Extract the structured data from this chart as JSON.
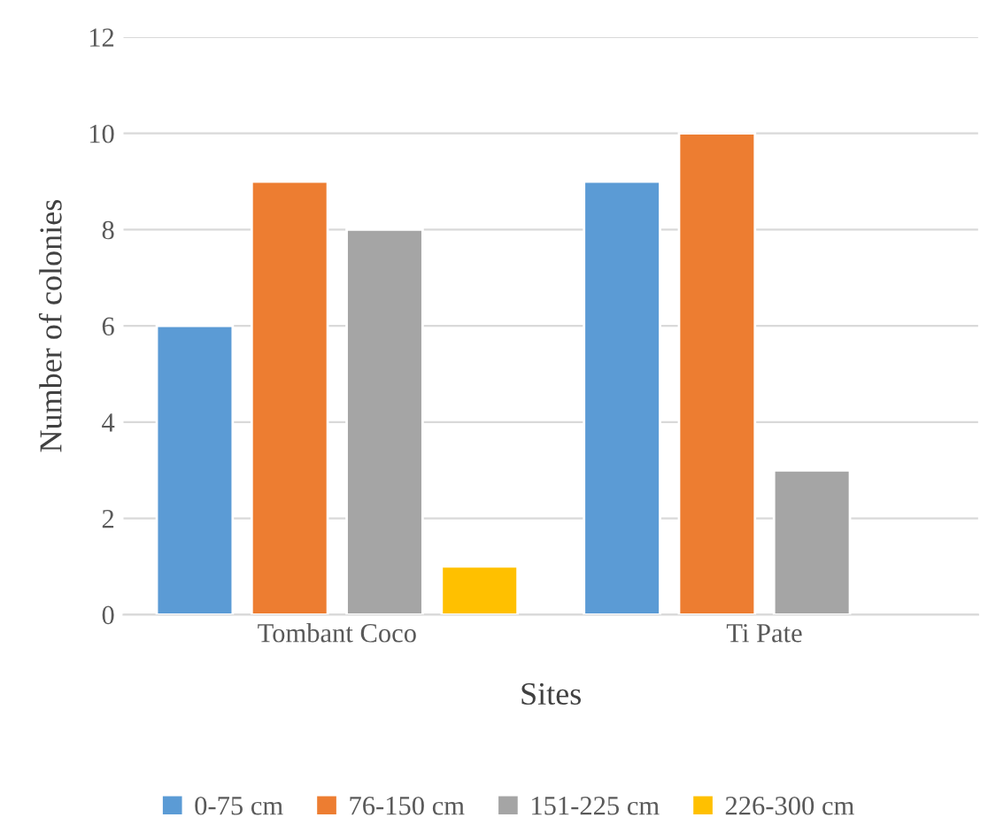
{
  "chart_data": {
    "type": "bar",
    "xlabel": "Sites",
    "ylabel": "Number of colonies",
    "categories": [
      "Tombant Coco",
      "Ti Pate"
    ],
    "series": [
      {
        "name": "0-75 cm",
        "color": "#5b9bd5",
        "values": [
          6,
          9
        ]
      },
      {
        "name": "76-150 cm",
        "color": "#ed7d31",
        "values": [
          9,
          10
        ]
      },
      {
        "name": "151-225 cm",
        "color": "#a5a5a5",
        "values": [
          8,
          3
        ]
      },
      {
        "name": "226-300 cm",
        "color": "#ffc000",
        "values": [
          1,
          null
        ]
      }
    ],
    "ylim": [
      0,
      12
    ],
    "yticks": [
      0,
      2,
      4,
      6,
      8,
      10,
      12
    ],
    "grid": "y",
    "legend": "bottom"
  }
}
